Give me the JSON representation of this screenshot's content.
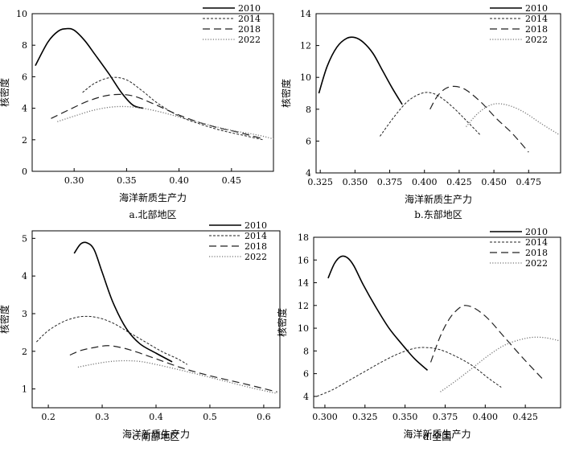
{
  "chart_data": [
    {
      "type": "line",
      "caption": "a.北部地区",
      "xlabel": "海洋新质生产力",
      "ylabel": "核密度",
      "xlim": [
        0.26,
        0.49
      ],
      "ylim": [
        0,
        10
      ],
      "xticks": [
        "0.30",
        "0.35",
        "0.40",
        "0.45"
      ],
      "xtick_values": [
        0.3,
        0.35,
        0.4,
        0.45
      ],
      "yticks": [
        "0",
        "2",
        "4",
        "6",
        "8",
        "10"
      ],
      "ytick_values": [
        0,
        2,
        4,
        6,
        8,
        10
      ],
      "legend": "top-right",
      "series": [
        {
          "name": "2010",
          "style": "solid",
          "x": [
            0.263,
            0.275,
            0.285,
            0.293,
            0.3,
            0.31,
            0.32,
            0.333,
            0.345,
            0.356,
            0.366
          ],
          "y": [
            6.7,
            8.2,
            8.9,
            9.05,
            8.95,
            8.3,
            7.4,
            6.2,
            5.0,
            4.2,
            4.0
          ]
        },
        {
          "name": "2014",
          "style": "short-dash",
          "x": [
            0.308,
            0.32,
            0.335,
            0.35,
            0.365,
            0.38,
            0.4,
            0.42,
            0.44,
            0.46,
            0.48
          ],
          "y": [
            5.0,
            5.6,
            5.95,
            5.8,
            5.1,
            4.3,
            3.5,
            3.0,
            2.6,
            2.3,
            2.0
          ]
        },
        {
          "name": "2018",
          "style": "long-dash",
          "x": [
            0.278,
            0.295,
            0.315,
            0.335,
            0.355,
            0.375,
            0.395,
            0.415,
            0.435,
            0.455,
            0.478
          ],
          "y": [
            3.35,
            3.9,
            4.5,
            4.85,
            4.8,
            4.3,
            3.7,
            3.2,
            2.8,
            2.5,
            2.1
          ]
        },
        {
          "name": "2022",
          "style": "dotted",
          "x": [
            0.284,
            0.3,
            0.32,
            0.34,
            0.36,
            0.38,
            0.4,
            0.425,
            0.45,
            0.475,
            0.493
          ],
          "y": [
            3.15,
            3.5,
            3.9,
            4.1,
            4.05,
            3.8,
            3.45,
            3.0,
            2.6,
            2.3,
            2.0
          ]
        }
      ]
    },
    {
      "type": "line",
      "caption": "b.东部地区",
      "xlabel": "海洋新质生产力",
      "ylabel": "核密度",
      "xlim": [
        0.322,
        0.498
      ],
      "ylim": [
        4,
        14
      ],
      "xticks": [
        "0.325",
        "0.350",
        "0.375",
        "0.400",
        "0.425",
        "0.450",
        "0.475"
      ],
      "xtick_values": [
        0.325,
        0.35,
        0.375,
        0.4,
        0.425,
        0.45,
        0.475
      ],
      "yticks": [
        "4",
        "6",
        "8",
        "10",
        "12",
        "14"
      ],
      "ytick_values": [
        4,
        6,
        8,
        10,
        12,
        14
      ],
      "legend": "top-right",
      "series": [
        {
          "name": "2010",
          "style": "solid",
          "x": [
            0.324,
            0.33,
            0.337,
            0.344,
            0.35,
            0.356,
            0.363,
            0.37,
            0.377,
            0.384
          ],
          "y": [
            9.0,
            10.7,
            11.9,
            12.45,
            12.5,
            12.2,
            11.5,
            10.4,
            9.3,
            8.3
          ]
        },
        {
          "name": "2014",
          "style": "short-dash",
          "x": [
            0.368,
            0.378,
            0.388,
            0.398,
            0.406,
            0.414,
            0.422,
            0.43,
            0.44
          ],
          "y": [
            6.3,
            7.5,
            8.5,
            9.0,
            9.0,
            8.6,
            8.0,
            7.3,
            6.4
          ]
        },
        {
          "name": "2018",
          "style": "long-dash",
          "x": [
            0.404,
            0.41,
            0.418,
            0.428,
            0.44,
            0.452,
            0.463,
            0.475
          ],
          "y": [
            8.0,
            8.9,
            9.4,
            9.3,
            8.5,
            7.4,
            6.5,
            5.3
          ]
        },
        {
          "name": "2022",
          "style": "dotted",
          "x": [
            0.43,
            0.438,
            0.446,
            0.453,
            0.462,
            0.472,
            0.484,
            0.497
          ],
          "y": [
            6.9,
            7.7,
            8.2,
            8.35,
            8.2,
            7.8,
            7.1,
            6.4
          ]
        }
      ]
    },
    {
      "type": "line",
      "caption": "c.南部地区",
      "xlabel": "海洋新质生产力",
      "ylabel": "核密度",
      "xlim": [
        0.17,
        0.63
      ],
      "ylim": [
        0.5,
        5.2
      ],
      "xticks": [
        "0.2",
        "0.3",
        "0.4",
        "0.5",
        "0.6"
      ],
      "xtick_values": [
        0.2,
        0.3,
        0.4,
        0.5,
        0.6
      ],
      "yticks": [
        "1",
        "2",
        "3",
        "4",
        "5"
      ],
      "ytick_values": [
        1,
        2,
        3,
        4,
        5
      ],
      "legend": "top-right",
      "series": [
        {
          "name": "2010",
          "style": "solid",
          "x": [
            0.248,
            0.26,
            0.272,
            0.285,
            0.3,
            0.32,
            0.345,
            0.37,
            0.4,
            0.43
          ],
          "y": [
            4.6,
            4.85,
            4.88,
            4.7,
            4.1,
            3.3,
            2.6,
            2.2,
            1.95,
            1.72
          ]
        },
        {
          "name": "2014",
          "style": "short-dash",
          "x": [
            0.178,
            0.2,
            0.23,
            0.26,
            0.29,
            0.32,
            0.35,
            0.38,
            0.41,
            0.44,
            0.458
          ],
          "y": [
            2.25,
            2.55,
            2.8,
            2.92,
            2.9,
            2.75,
            2.5,
            2.25,
            2.0,
            1.8,
            1.65
          ]
        },
        {
          "name": "2018",
          "style": "long-dash",
          "x": [
            0.24,
            0.26,
            0.285,
            0.31,
            0.335,
            0.36,
            0.4,
            0.45,
            0.5,
            0.56,
            0.625
          ],
          "y": [
            1.9,
            2.02,
            2.1,
            2.15,
            2.1,
            2.0,
            1.8,
            1.55,
            1.35,
            1.15,
            0.92
          ]
        },
        {
          "name": "2022",
          "style": "dotted",
          "x": [
            0.255,
            0.28,
            0.31,
            0.34,
            0.37,
            0.4,
            0.44,
            0.48,
            0.53,
            0.58,
            0.625
          ],
          "y": [
            1.58,
            1.65,
            1.72,
            1.75,
            1.73,
            1.65,
            1.52,
            1.38,
            1.2,
            1.02,
            0.88
          ]
        }
      ]
    },
    {
      "type": "line",
      "caption": "d.全国",
      "xlabel": "海洋新质生产力",
      "ylabel": "核密度",
      "xlim": [
        0.293,
        0.447
      ],
      "ylim": [
        3,
        18
      ],
      "xticks": [
        "0.300",
        "0.325",
        "0.350",
        "0.375",
        "0.400",
        "0.425"
      ],
      "xtick_values": [
        0.3,
        0.325,
        0.35,
        0.375,
        0.4,
        0.425
      ],
      "yticks": [
        "4",
        "6",
        "8",
        "10",
        "12",
        "14",
        "16",
        "18"
      ],
      "ytick_values": [
        4,
        6,
        8,
        10,
        12,
        14,
        16,
        18
      ],
      "legend": "top-right",
      "series": [
        {
          "name": "2010",
          "style": "solid",
          "x": [
            0.302,
            0.306,
            0.31,
            0.314,
            0.318,
            0.324,
            0.332,
            0.34,
            0.348,
            0.356,
            0.364
          ],
          "y": [
            14.4,
            15.7,
            16.3,
            16.2,
            15.5,
            13.8,
            11.8,
            10.0,
            8.6,
            7.3,
            6.3
          ]
        },
        {
          "name": "2014",
          "style": "short-dash",
          "x": [
            0.295,
            0.305,
            0.315,
            0.325,
            0.335,
            0.345,
            0.355,
            0.363,
            0.372,
            0.382,
            0.392,
            0.402,
            0.41
          ],
          "y": [
            4.0,
            4.6,
            5.4,
            6.2,
            7.0,
            7.7,
            8.2,
            8.3,
            8.1,
            7.5,
            6.7,
            5.6,
            4.8
          ]
        },
        {
          "name": "2018",
          "style": "long-dash",
          "x": [
            0.366,
            0.372,
            0.378,
            0.384,
            0.388,
            0.394,
            0.402,
            0.412,
            0.424,
            0.436
          ],
          "y": [
            7.0,
            9.3,
            10.9,
            11.8,
            12.0,
            11.7,
            10.8,
            9.2,
            7.3,
            5.5
          ]
        },
        {
          "name": "2022",
          "style": "dotted",
          "x": [
            0.372,
            0.382,
            0.392,
            0.402,
            0.412,
            0.422,
            0.43,
            0.438,
            0.446
          ],
          "y": [
            4.4,
            5.4,
            6.5,
            7.6,
            8.5,
            9.0,
            9.2,
            9.15,
            8.9
          ]
        }
      ]
    }
  ]
}
